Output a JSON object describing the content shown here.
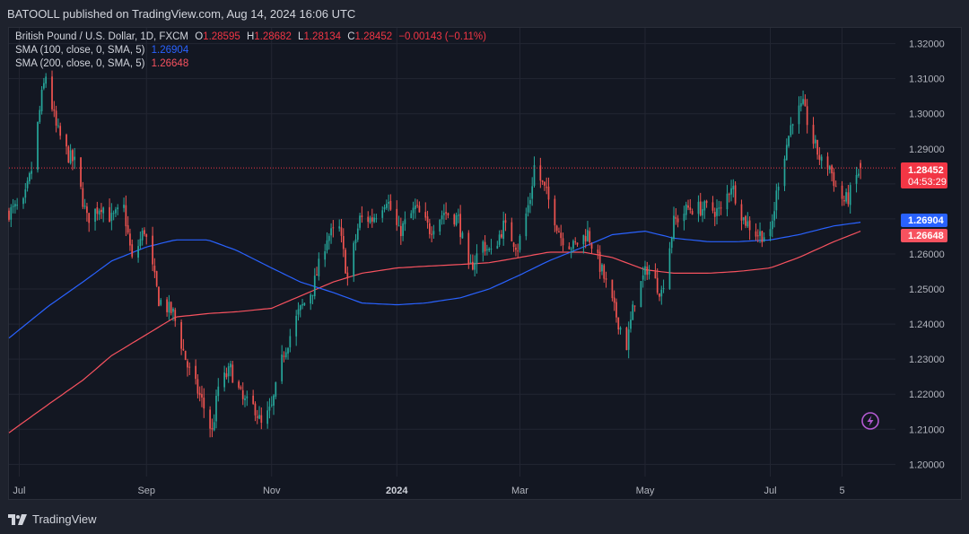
{
  "header": {
    "publisher_line": "BATOOLL published on TradingView.com, Aug 14, 2024 16:06 UTC"
  },
  "legend": {
    "symbol_line": "British Pound / U.S. Dollar, 1D, FXCM",
    "open_key": "O",
    "open": "1.28595",
    "high_key": "H",
    "high": "1.28682",
    "low_key": "L",
    "low": "1.28134",
    "close_key": "C",
    "close": "1.28452",
    "change": "−0.00143 (−0.11%)",
    "sma100_label": "SMA (100, close, 0, SMA, 5)",
    "sma100_value": "1.26904",
    "sma200_label": "SMA (200, close, 0, SMA, 5)",
    "sma200_value": "1.26648"
  },
  "price_tags": {
    "last_price": "1.28452",
    "countdown": "04:53:29",
    "sma100": "1.26904",
    "sma200": "1.26648"
  },
  "footer": {
    "brand": "TradingView"
  },
  "icons": {
    "flash": "lightning-icon",
    "logo": "tradingview-logo-icon"
  },
  "colors": {
    "up": "#26a69a",
    "down": "#ef5350",
    "sma100": "#2962ff",
    "sma200": "#f7525f",
    "last_price": "#f23645"
  },
  "chart_data": {
    "type": "candlestick",
    "symbol": "British Pound / U.S. Dollar",
    "interval": "1D",
    "y_ticks": [
      "1.20000",
      "1.21000",
      "1.22000",
      "1.23000",
      "1.24000",
      "1.25000",
      "1.26000",
      "1.27000",
      "1.28000",
      "1.29000",
      "1.30000",
      "1.31000",
      "1.32000"
    ],
    "ylim": [
      1.1965,
      1.3245
    ],
    "x_ticks": [
      {
        "label": "Jul",
        "date": "2023-07-01"
      },
      {
        "label": "Sep",
        "date": "2023-09-01"
      },
      {
        "label": "Nov",
        "date": "2023-11-01"
      },
      {
        "label": "2024",
        "date": "2024-01-01"
      },
      {
        "label": "Mar",
        "date": "2024-03-01"
      },
      {
        "label": "May",
        "date": "2024-05-01"
      },
      {
        "label": "Jul",
        "date": "2024-07-01"
      },
      {
        "label": "5",
        "date": "2024-08-05"
      }
    ],
    "xlim": [
      "2023-06-26",
      "2024-08-31"
    ],
    "last_date": "2024-08-14",
    "close_anchors": [
      [
        "2023-06-26",
        1.272
      ],
      [
        "2023-07-03",
        1.274
      ],
      [
        "2023-07-07",
        1.284
      ],
      [
        "2023-07-12",
        1.305
      ],
      [
        "2023-07-14",
        1.311
      ],
      [
        "2023-07-19",
        1.296
      ],
      [
        "2023-07-25",
        1.288
      ],
      [
        "2023-07-28",
        1.286
      ],
      [
        "2023-08-03",
        1.27
      ],
      [
        "2023-08-10",
        1.274
      ],
      [
        "2023-08-15",
        1.27
      ],
      [
        "2023-08-21",
        1.273
      ],
      [
        "2023-08-25",
        1.258
      ],
      [
        "2023-08-31",
        1.267
      ],
      [
        "2023-09-07",
        1.247
      ],
      [
        "2023-09-14",
        1.243
      ],
      [
        "2023-09-21",
        1.228
      ],
      [
        "2023-09-28",
        1.218
      ],
      [
        "2023-10-03",
        1.209
      ],
      [
        "2023-10-06",
        1.222
      ],
      [
        "2023-10-12",
        1.227
      ],
      [
        "2023-10-18",
        1.218
      ],
      [
        "2023-10-24",
        1.216
      ],
      [
        "2023-10-27",
        1.211
      ],
      [
        "2023-11-01",
        1.216
      ],
      [
        "2023-11-07",
        1.232
      ],
      [
        "2023-11-14",
        1.243
      ],
      [
        "2023-11-21",
        1.25
      ],
      [
        "2023-11-28",
        1.265
      ],
      [
        "2023-12-04",
        1.267
      ],
      [
        "2023-12-08",
        1.253
      ],
      [
        "2023-12-14",
        1.27
      ],
      [
        "2023-12-20",
        1.27
      ],
      [
        "2023-12-27",
        1.276
      ],
      [
        "2024-01-02",
        1.266
      ],
      [
        "2024-01-10",
        1.273
      ],
      [
        "2024-01-17",
        1.267
      ],
      [
        "2024-01-24",
        1.272
      ],
      [
        "2024-01-31",
        1.27
      ],
      [
        "2024-02-05",
        1.255
      ],
      [
        "2024-02-12",
        1.263
      ],
      [
        "2024-02-16",
        1.26
      ],
      [
        "2024-02-22",
        1.268
      ],
      [
        "2024-02-29",
        1.262
      ],
      [
        "2024-03-06",
        1.276
      ],
      [
        "2024-03-08",
        1.285
      ],
      [
        "2024-03-14",
        1.277
      ],
      [
        "2024-03-21",
        1.265
      ],
      [
        "2024-03-27",
        1.262
      ],
      [
        "2024-04-03",
        1.266
      ],
      [
        "2024-04-10",
        1.255
      ],
      [
        "2024-04-16",
        1.244
      ],
      [
        "2024-04-22",
        1.234
      ],
      [
        "2024-04-26",
        1.247
      ],
      [
        "2024-05-02",
        1.256
      ],
      [
        "2024-05-09",
        1.249
      ],
      [
        "2024-05-15",
        1.269
      ],
      [
        "2024-05-22",
        1.273
      ],
      [
        "2024-05-31",
        1.273
      ],
      [
        "2024-06-07",
        1.272
      ],
      [
        "2024-06-12",
        1.28
      ],
      [
        "2024-06-18",
        1.27
      ],
      [
        "2024-06-24",
        1.266
      ],
      [
        "2024-07-01",
        1.265
      ],
      [
        "2024-07-05",
        1.281
      ],
      [
        "2024-07-12",
        1.299
      ],
      [
        "2024-07-17",
        1.302
      ],
      [
        "2024-07-22",
        1.292
      ],
      [
        "2024-07-26",
        1.286
      ],
      [
        "2024-07-30",
        1.285
      ],
      [
        "2024-08-02",
        1.279
      ],
      [
        "2024-08-06",
        1.275
      ],
      [
        "2024-08-08",
        1.276
      ],
      [
        "2024-08-12",
        1.282
      ],
      [
        "2024-08-14",
        1.2845
      ]
    ],
    "sma100": [
      [
        "2023-06-26",
        1.236
      ],
      [
        "2023-07-15",
        1.245
      ],
      [
        "2023-08-01",
        1.252
      ],
      [
        "2023-08-15",
        1.258
      ],
      [
        "2023-09-01",
        1.262
      ],
      [
        "2023-09-15",
        1.264
      ],
      [
        "2023-10-01",
        1.264
      ],
      [
        "2023-10-15",
        1.261
      ],
      [
        "2023-11-01",
        1.256
      ],
      [
        "2023-11-15",
        1.252
      ],
      [
        "2023-12-01",
        1.249
      ],
      [
        "2023-12-15",
        1.246
      ],
      [
        "2024-01-01",
        1.2455
      ],
      [
        "2024-01-15",
        1.246
      ],
      [
        "2024-02-01",
        1.2475
      ],
      [
        "2024-02-15",
        1.25
      ],
      [
        "2024-03-01",
        1.254
      ],
      [
        "2024-03-15",
        1.258
      ],
      [
        "2024-04-01",
        1.262
      ],
      [
        "2024-04-15",
        1.2655
      ],
      [
        "2024-05-01",
        1.2665
      ],
      [
        "2024-05-15",
        1.2645
      ],
      [
        "2024-06-01",
        1.2635
      ],
      [
        "2024-06-15",
        1.2635
      ],
      [
        "2024-07-01",
        1.264
      ],
      [
        "2024-07-15",
        1.2655
      ],
      [
        "2024-08-01",
        1.268
      ],
      [
        "2024-08-14",
        1.26904
      ]
    ],
    "sma200": [
      [
        "2023-06-26",
        1.209
      ],
      [
        "2023-07-15",
        1.217
      ],
      [
        "2023-08-01",
        1.224
      ],
      [
        "2023-08-15",
        1.231
      ],
      [
        "2023-09-01",
        1.237
      ],
      [
        "2023-09-15",
        1.242
      ],
      [
        "2023-10-01",
        1.243
      ],
      [
        "2023-10-15",
        1.2435
      ],
      [
        "2023-11-01",
        1.2445
      ],
      [
        "2023-11-15",
        1.248
      ],
      [
        "2023-12-01",
        1.252
      ],
      [
        "2023-12-15",
        1.2545
      ],
      [
        "2024-01-01",
        1.256
      ],
      [
        "2024-01-15",
        1.2565
      ],
      [
        "2024-02-01",
        1.257
      ],
      [
        "2024-02-15",
        1.2575
      ],
      [
        "2024-03-01",
        1.259
      ],
      [
        "2024-03-15",
        1.2605
      ],
      [
        "2024-04-01",
        1.2605
      ],
      [
        "2024-04-15",
        1.259
      ],
      [
        "2024-05-01",
        1.2555
      ],
      [
        "2024-05-15",
        1.2545
      ],
      [
        "2024-06-01",
        1.2545
      ],
      [
        "2024-06-15",
        1.255
      ],
      [
        "2024-07-01",
        1.256
      ],
      [
        "2024-07-15",
        1.259
      ],
      [
        "2024-08-01",
        1.2635
      ],
      [
        "2024-08-14",
        1.26648
      ]
    ]
  }
}
